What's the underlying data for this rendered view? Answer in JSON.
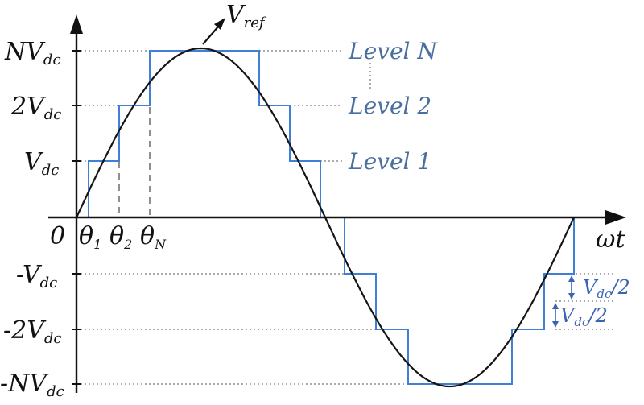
{
  "colors": {
    "axis": "#111111",
    "sine": "#151515",
    "staircase": "#3f7fd6",
    "guide": "#8f8f8f",
    "level_text": "#4a6f9e",
    "vdc_text": "#3c64b4"
  },
  "y_labels": {
    "nvdc": {
      "main": "NV",
      "sub": "dc"
    },
    "twovdc": {
      "main": "2V",
      "sub": "dc"
    },
    "vdc": {
      "main": "V",
      "sub": "dc"
    },
    "neg_vdc": {
      "main": "-V",
      "sub": "dc"
    },
    "neg_twovdc": {
      "main": "-2V",
      "sub": "dc"
    },
    "neg_nvdc": {
      "main": "-NV",
      "sub": "dc"
    }
  },
  "x_labels": {
    "origin": "0",
    "theta1": {
      "main": "θ",
      "sub": "1"
    },
    "theta2": {
      "main": "θ",
      "sub": "2"
    },
    "thetaN": {
      "main": "θ",
      "sub": "N"
    },
    "wt": "ωt"
  },
  "vref": {
    "main": "V",
    "sub": "ref"
  },
  "levels": {
    "level_n": "Level N",
    "level_2": "Level 2",
    "level_1": "Level 1"
  },
  "half_vdc": {
    "main": "V",
    "sub": "dc",
    "tail": "/2"
  },
  "waveform": {
    "levels_shown": [
      3,
      2,
      1,
      0,
      -1,
      -2,
      -3
    ],
    "staircase_switch_angles_deg": [
      10,
      30,
      50,
      130,
      150,
      170,
      190,
      210,
      230,
      310,
      330,
      350
    ]
  }
}
